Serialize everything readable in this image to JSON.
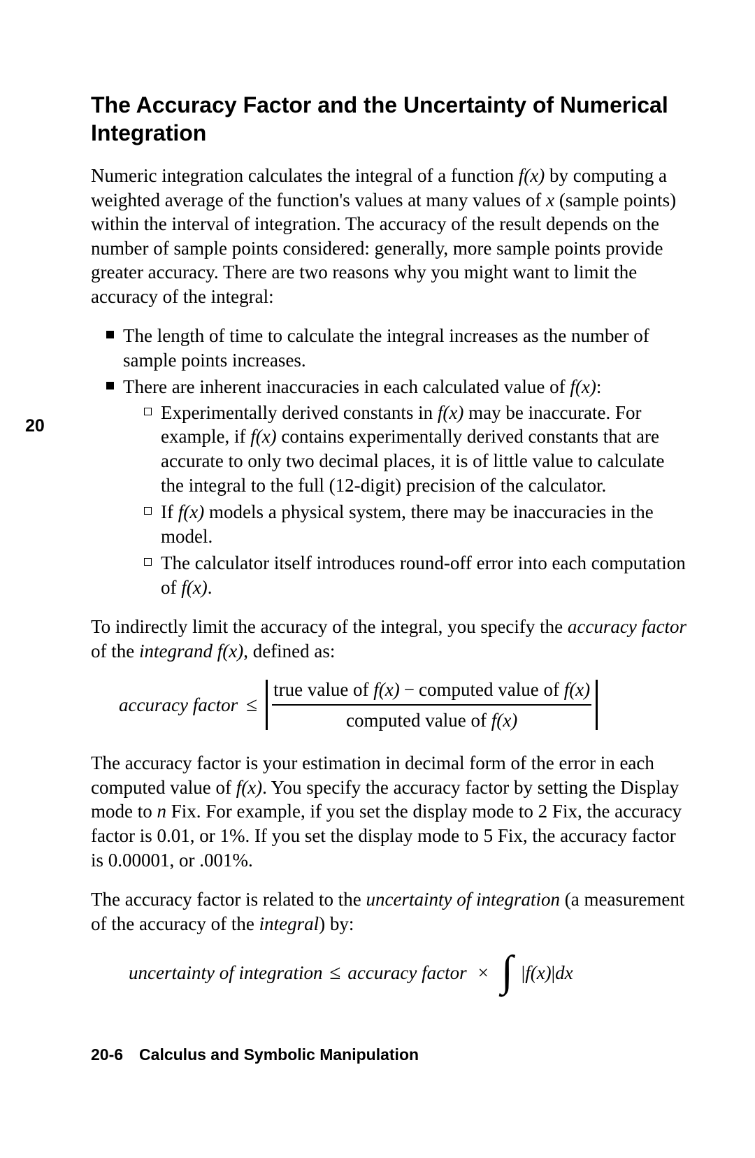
{
  "margin_marker": "20",
  "title": "The Accuracy Factor and the Uncertainty of Numerical Integration",
  "intro": {
    "pre_fx": "Numeric integration calculates the integral of a function ",
    "fx": "f(x)",
    "post_fx_pre_x": " by computing a weighted average of the function's values at many values of ",
    "x": "x",
    "post_x": " (sample points) within the interval of integration. The accuracy of the result depends on the number of sample points considered: generally, more sample points provide greater accuracy. There are two reasons why you might want to limit the accuracy of the integral:"
  },
  "bullets": {
    "b1": "The length of time to calculate the integral increases as the number of sample points increases.",
    "b2_pre": "There are inherent inaccuracies in each calculated value of ",
    "b2_fx": "f(x)",
    "b2_post": ":",
    "sq1_pre": "Experimentally derived constants in ",
    "sq1_fx1": "f(x)",
    "sq1_mid": " may be inaccurate. For example, if ",
    "sq1_fx2": "f(x)",
    "sq1_post": " contains experimentally derived constants that are accurate to only two decimal places, it is of little value to calculate the integral to the full (12-digit) precision of the calculator.",
    "sq2_pre": "If ",
    "sq2_fx": "f(x)",
    "sq2_post": " models a physical system, there may be inaccuracies in the model.",
    "sq3_pre": "The calculator itself introduces round-off error into each computation of ",
    "sq3_fx": "f(x)",
    "sq3_post": "."
  },
  "para2": {
    "pre": "To indirectly limit the accuracy of the integral, you specify the ",
    "af_ital": "accuracy factor",
    "mid": " of the ",
    "integrand_ital": "integrand",
    "sp": " ",
    "fx": "f(x)",
    "post": ", defined as:"
  },
  "eq1": {
    "lhs": "accuracy factor",
    "leq": "≤",
    "num_pre": "true value of ",
    "num_fx1": "f(x)",
    "num_minus": "−",
    "num_mid": "computed value of ",
    "num_fx2": "f(x)",
    "den_pre": "computed value of ",
    "den_fx": "f(x)"
  },
  "para3": {
    "pre": "The accuracy factor is your estimation in decimal form of the error in each computed value of ",
    "fx": "f(x)",
    "mid1": ". You specify the accuracy factor by setting the Display mode to ",
    "n": "n",
    "post": " Fix. For example, if you set the display mode to 2 Fix, the accuracy factor is 0.01, or 1%. If you set the display mode to 5 Fix, the accuracy factor is 0.00001, or .001%."
  },
  "para4": {
    "pre": "The accuracy factor is related to the ",
    "ui": "uncertainty of integration",
    "mid": " (a measurement of the accuracy of the ",
    "integral_ital": "integral",
    "post": ") by:"
  },
  "eq2": {
    "lhs": "uncertainty of integration",
    "leq": "≤",
    "rhs1": "accuracy factor",
    "times": "×",
    "int": "∫",
    "abs_open": "|",
    "fx": "f(x)",
    "abs_close": "|",
    "dx": "dx"
  },
  "footer": {
    "pagenum": "20-6",
    "spacer": " ",
    "chapter": "Calculus and Symbolic Manipulation"
  }
}
